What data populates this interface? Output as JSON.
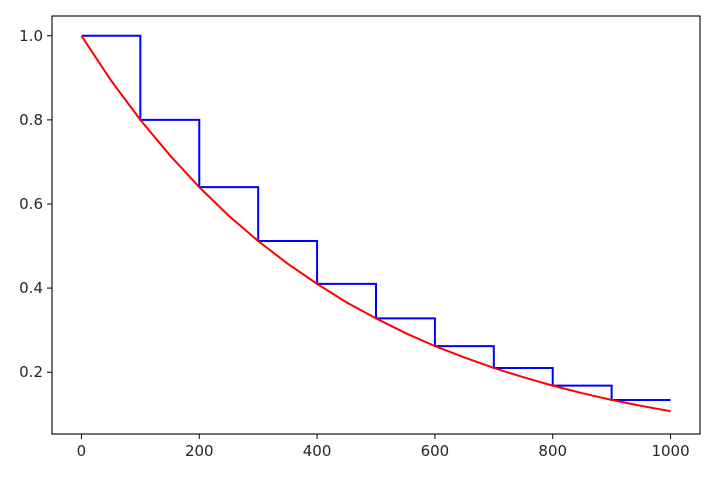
{
  "chart_data": {
    "type": "line",
    "title": "",
    "xlabel": "",
    "ylabel": "",
    "xlim": [
      -50,
      1050
    ],
    "ylim": [
      0.053,
      1.047
    ],
    "grid": false,
    "legend": "none",
    "x_ticks": [
      {
        "value": 0,
        "label": "0"
      },
      {
        "value": 200,
        "label": "200"
      },
      {
        "value": 400,
        "label": "400"
      },
      {
        "value": 600,
        "label": "600"
      },
      {
        "value": 800,
        "label": "800"
      },
      {
        "value": 1000,
        "label": "1000"
      }
    ],
    "y_ticks": [
      {
        "value": 0.2,
        "label": "0.2"
      },
      {
        "value": 0.4,
        "label": "0.4"
      },
      {
        "value": 0.6,
        "label": "0.6"
      },
      {
        "value": 0.8,
        "label": "0.8"
      },
      {
        "value": 1.0,
        "label": "1.0"
      }
    ],
    "series": [
      {
        "style": "step-post",
        "color": "#0000ff",
        "x": [
          0,
          100,
          200,
          300,
          400,
          500,
          600,
          700,
          800,
          900,
          1000
        ],
        "y": [
          1.0,
          0.8,
          0.64,
          0.512,
          0.41,
          0.328,
          0.262,
          0.21,
          0.168,
          0.134,
          0.134
        ]
      },
      {
        "style": "line",
        "color": "#ff0000",
        "x": [
          0,
          50,
          100,
          150,
          200,
          250,
          300,
          350,
          400,
          450,
          500,
          550,
          600,
          650,
          700,
          750,
          800,
          850,
          900,
          950,
          1000
        ],
        "y": [
          1.0,
          0.894,
          0.8,
          0.716,
          0.64,
          0.572,
          0.512,
          0.458,
          0.41,
          0.366,
          0.328,
          0.293,
          0.262,
          0.235,
          0.21,
          0.188,
          0.168,
          0.15,
          0.134,
          0.12,
          0.107
        ]
      }
    ]
  }
}
